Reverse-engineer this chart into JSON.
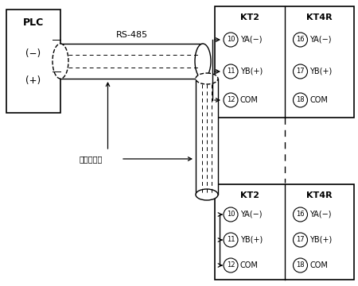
{
  "bg_color": "#ffffff",
  "line_color": "#000000",
  "plc_label": "PLC",
  "plc_minus": "(−)",
  "plc_plus": "(+)",
  "rs485_label": "RS-485",
  "shield_label": "シールド線",
  "kt2_label": "KT2",
  "kt4r_label": "KT4R",
  "top_rows": [
    {
      "circle": "10",
      "text": "YA(−)",
      "circle2": "16",
      "text2": "YA(−)"
    },
    {
      "circle": "11",
      "text": "YB(+)",
      "circle2": "17",
      "text2": "YB(+)"
    },
    {
      "circle": "12",
      "text": "COM",
      "circle2": "18",
      "text2": "COM"
    }
  ],
  "bot_rows": [
    {
      "circle": "10",
      "text": "YA(−)",
      "circle2": "16",
      "text2": "YA(−)"
    },
    {
      "circle": "11",
      "text": "YB(+)",
      "circle2": "17",
      "text2": "YB(+)"
    },
    {
      "circle": "12",
      "text": "COM",
      "circle2": "18",
      "text2": "COM"
    }
  ]
}
